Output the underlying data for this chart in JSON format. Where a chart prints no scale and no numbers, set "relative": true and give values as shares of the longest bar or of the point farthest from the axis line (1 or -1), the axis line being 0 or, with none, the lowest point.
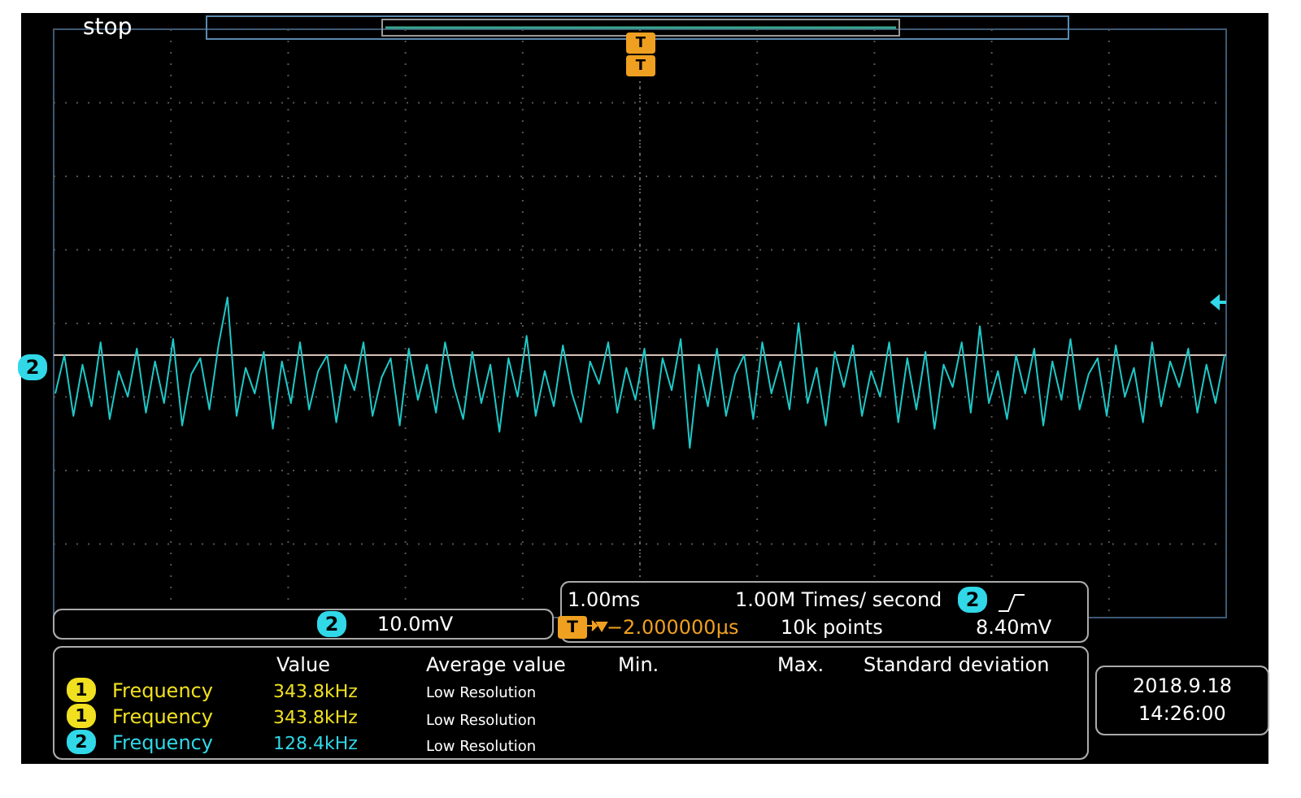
{
  "chart_data": {
    "type": "line",
    "relative": true,
    "grid": true,
    "line_style": "solid",
    "categories": [
      null,
      null,
      null,
      null,
      null,
      null,
      null,
      null,
      null,
      null,
      null,
      null,
      null,
      null,
      null,
      null,
      null,
      null,
      null,
      null,
      null,
      null,
      null,
      null,
      null,
      null,
      null,
      null,
      null,
      null,
      null,
      null,
      null,
      null,
      null,
      null,
      null,
      null,
      null,
      null,
      null,
      null,
      null,
      null,
      null,
      null,
      null,
      null,
      null,
      null,
      null,
      null,
      null,
      null,
      null,
      null,
      null,
      null,
      null,
      null,
      null,
      null,
      null,
      null,
      null,
      null,
      null,
      null,
      null,
      null,
      null,
      null,
      null,
      null,
      null,
      null,
      null,
      null,
      null,
      null,
      null,
      null,
      null,
      null,
      null,
      null,
      null,
      null,
      null,
      null,
      null,
      null,
      null,
      null,
      null,
      null,
      null,
      null,
      null,
      null,
      null,
      null,
      null,
      null,
      null,
      null,
      null,
      null,
      null,
      null,
      null,
      null,
      null,
      null,
      null,
      null,
      null,
      null,
      null,
      null,
      null,
      null,
      null,
      null,
      null,
      null,
      null,
      null,
      null,
      null
    ],
    "series": [
      {
        "color": "#1fc8c8",
        "values": [
          0.7,
          0.82,
          0.63,
          0.79,
          0.66,
          0.86,
          0.62,
          0.77,
          0.69,
          0.84,
          0.64,
          0.8,
          0.67,
          0.87,
          0.6,
          0.76,
          0.81,
          0.65,
          0.85,
          1,
          0.63,
          0.78,
          0.7,
          0.83,
          0.59,
          0.8,
          0.67,
          0.86,
          0.65,
          0.77,
          0.82,
          0.61,
          0.79,
          0.71,
          0.86,
          0.63,
          0.75,
          0.81,
          0.6,
          0.84,
          0.68,
          0.79,
          0.64,
          0.86,
          0.72,
          0.62,
          0.83,
          0.67,
          0.79,
          0.58,
          0.81,
          0.69,
          0.88,
          0.63,
          0.77,
          0.66,
          0.85,
          0.7,
          0.61,
          0.8,
          0.73,
          0.86,
          0.64,
          0.78,
          0.68,
          0.84,
          0.59,
          0.81,
          0.71,
          0.87,
          0.53,
          0.79,
          0.66,
          0.84,
          0.63,
          0.76,
          0.82,
          0.62,
          0.86,
          0.7,
          0.8,
          0.65,
          0.92,
          0.67,
          0.78,
          0.6,
          0.83,
          0.72,
          0.85,
          0.63,
          0.77,
          0.69,
          0.86,
          0.61,
          0.81,
          0.65,
          0.83,
          0.59,
          0.79,
          0.72,
          0.86,
          0.64,
          0.91,
          0.67,
          0.77,
          0.62,
          0.82,
          0.7,
          0.84,
          0.6,
          0.8,
          0.68,
          0.87,
          0.65,
          0.76,
          0.81,
          0.63,
          0.85,
          0.69,
          0.78,
          0.61,
          0.86,
          0.66,
          0.8,
          0.72,
          0.84,
          0.64,
          0.79,
          0.67,
          0.82
        ]
      }
    ],
    "ref_lines": [
      {
        "axis": "y",
        "value": 0.82,
        "color": "#d8c0b8"
      }
    ],
    "annotations": [
      "stop",
      "T",
      "T",
      "2",
      "2",
      "10.0mV",
      "1.00ms",
      "1.00M Times/ second",
      "2",
      "T",
      "−2.000000µs",
      "10k points",
      "8.40mV",
      "Value",
      "Average value",
      "Min.",
      "Max.",
      "Standard deviation",
      "1",
      "Frequency",
      "343.8kHz",
      "Low Resolution",
      "1",
      "Frequency",
      "343.8kHz",
      "Low Resolution",
      "2",
      "Frequency",
      "128.4kHz",
      "Low Resolution",
      "2018.9.18",
      "14:26:00"
    ]
  }
}
